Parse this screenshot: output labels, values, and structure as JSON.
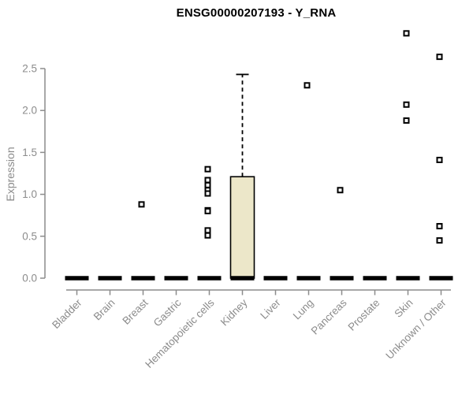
{
  "chart_data": {
    "type": "boxplot",
    "title": "ENSG00000207193 - Y_RNA",
    "ylabel": "Expression",
    "xlabel": "",
    "ylim": [
      0,
      2.95
    ],
    "yticks": [
      0.0,
      0.5,
      1.0,
      1.5,
      2.0,
      2.5
    ],
    "grid": false,
    "legend": "none",
    "categories": [
      "Bladder",
      "Brain",
      "Breast",
      "Gastric",
      "Hematopoietic cells",
      "Kidney",
      "Liver",
      "Lung",
      "Pancreas",
      "Prostate",
      "Skin",
      "Unknown / Other"
    ],
    "boxes": [
      {
        "category": "Bladder",
        "whisker_low": 0,
        "q1": 0,
        "median": 0,
        "q3": 0,
        "whisker_high": 0,
        "outliers": []
      },
      {
        "category": "Brain",
        "whisker_low": 0,
        "q1": 0,
        "median": 0,
        "q3": 0,
        "whisker_high": 0,
        "outliers": []
      },
      {
        "category": "Breast",
        "whisker_low": 0,
        "q1": 0,
        "median": 0,
        "q3": 0,
        "whisker_high": 0,
        "outliers": [
          0.88
        ]
      },
      {
        "category": "Gastric",
        "whisker_low": 0,
        "q1": 0,
        "median": 0,
        "q3": 0,
        "whisker_high": 0,
        "outliers": []
      },
      {
        "category": "Hematopoietic cells",
        "whisker_low": 0,
        "q1": 0,
        "median": 0,
        "q3": 0,
        "whisker_high": 0,
        "outliers": [
          1.3,
          1.17,
          1.11,
          1.05,
          1.01,
          0.81,
          0.8,
          0.57,
          0.51
        ]
      },
      {
        "category": "Kidney",
        "whisker_low": 0,
        "q1": 0,
        "median": 0,
        "q3": 1.21,
        "whisker_high": 2.43,
        "outliers": []
      },
      {
        "category": "Liver",
        "whisker_low": 0,
        "q1": 0,
        "median": 0,
        "q3": 0,
        "whisker_high": 0,
        "outliers": []
      },
      {
        "category": "Lung",
        "whisker_low": 0,
        "q1": 0,
        "median": 0,
        "q3": 0,
        "whisker_high": 0,
        "outliers": [
          2.3
        ]
      },
      {
        "category": "Pancreas",
        "whisker_low": 0,
        "q1": 0,
        "median": 0,
        "q3": 0,
        "whisker_high": 0,
        "outliers": [
          1.05
        ]
      },
      {
        "category": "Prostate",
        "whisker_low": 0,
        "q1": 0,
        "median": 0,
        "q3": 0,
        "whisker_high": 0,
        "outliers": []
      },
      {
        "category": "Skin",
        "whisker_low": 0,
        "q1": 0,
        "median": 0,
        "q3": 0,
        "whisker_high": 0,
        "outliers": [
          2.92,
          2.07,
          1.88
        ]
      },
      {
        "category": "Unknown / Other",
        "whisker_low": 0,
        "q1": 0,
        "median": 0,
        "q3": 0,
        "whisker_high": 0,
        "outliers": [
          2.64,
          1.41,
          0.62,
          0.45
        ]
      }
    ],
    "colors": {
      "box_fill": "#ECE7C9",
      "box_border": "#000000",
      "median": "#000000",
      "whisker": "#000000",
      "outlier_stroke": "#000000",
      "outlier_fill": "#ffffff",
      "axis_line": "#8c8c8c",
      "tick_label": "#8c8c8c",
      "title": "#000000",
      "background": "#ffffff"
    }
  }
}
